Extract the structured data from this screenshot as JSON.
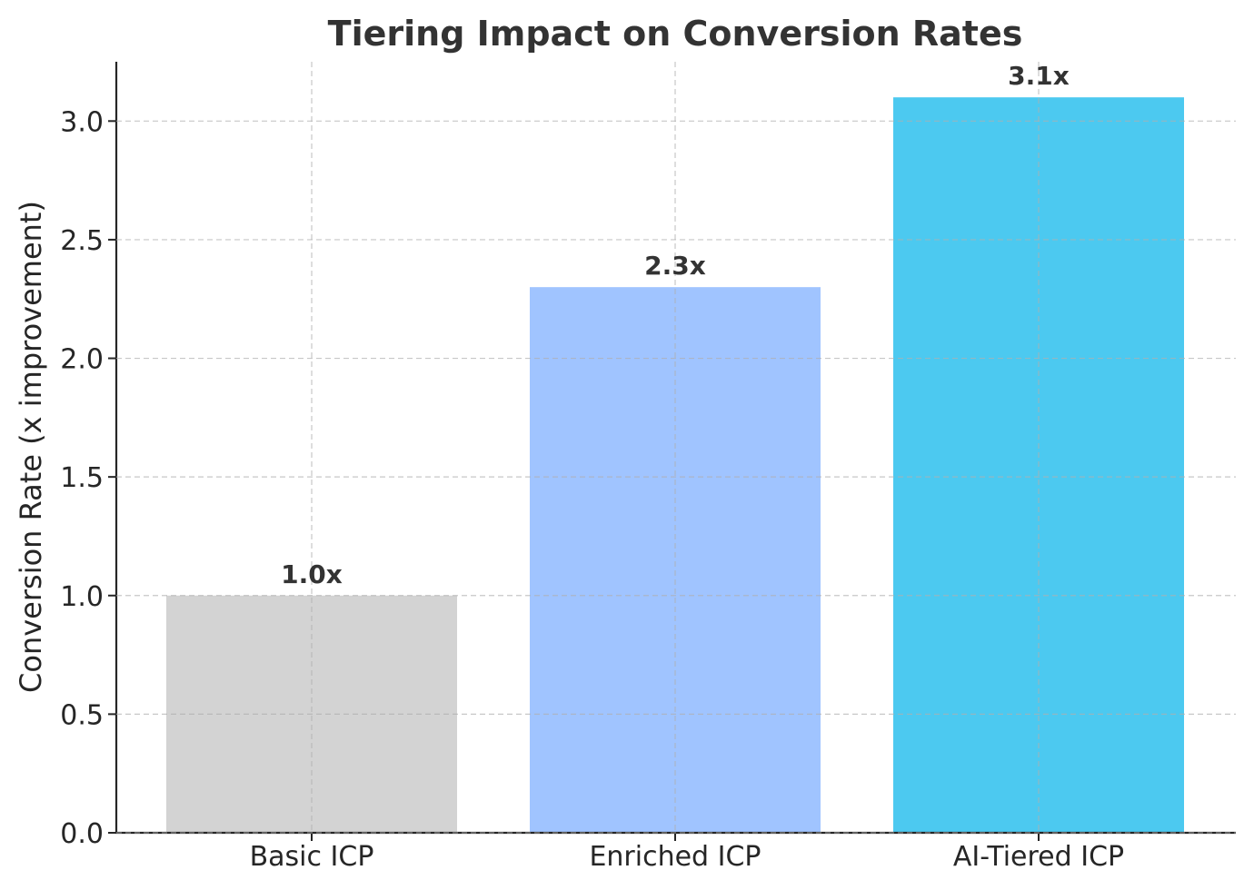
{
  "chart_data": {
    "type": "bar",
    "title": "Tiering Impact on Conversion Rates",
    "xlabel": "",
    "ylabel": "Conversion Rate (x improvement)",
    "categories": [
      "Basic ICP",
      "Enriched ICP",
      "AI-Tiered ICP"
    ],
    "values": [
      1.0,
      2.3,
      3.1
    ],
    "data_labels": [
      "1.0x",
      "2.3x",
      "3.1x"
    ],
    "colors": [
      "#d3d3d3",
      "#a0c4ff",
      "#4cc9f0"
    ],
    "ylim": [
      0,
      3.25
    ],
    "yticks": [
      0.0,
      0.5,
      1.0,
      1.5,
      2.0,
      2.5,
      3.0
    ],
    "ytick_labels": [
      "0.0",
      "0.5",
      "1.0",
      "1.5",
      "2.0",
      "2.5",
      "3.0"
    ],
    "grid": true,
    "legend": "none"
  }
}
